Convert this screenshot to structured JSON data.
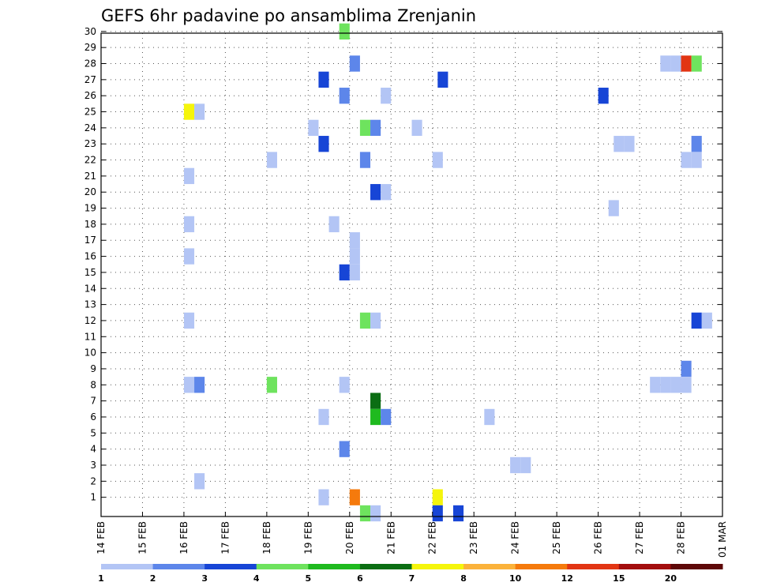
{
  "chart_data": {
    "type": "heatmap",
    "title": "GEFS 6hr padavine po ansamblima Zrenjanin",
    "xlabel": "",
    "ylabel": "",
    "x_ticks": [
      "14 FEB",
      "15 FEB",
      "16 FEB",
      "17 FEB",
      "18 FEB",
      "19 FEB",
      "20 FEB",
      "21 FEB",
      "22 FEB",
      "23 FEB",
      "24 FEB",
      "25 FEB",
      "26 FEB",
      "27 FEB",
      "28 FEB",
      "01 MAR"
    ],
    "y_ticks": [
      "1",
      "2",
      "3",
      "4",
      "5",
      "6",
      "7",
      "8",
      "9",
      "10",
      "11",
      "12",
      "13",
      "14",
      "15",
      "16",
      "17",
      "18",
      "19",
      "20",
      "21",
      "22",
      "23",
      "24",
      "25",
      "26",
      "27",
      "28",
      "29",
      "30"
    ],
    "xlim": [
      0,
      60
    ],
    "ylim": [
      0,
      30
    ],
    "x_units": "6-hour steps from 14 FEB 00Z",
    "y_units": "ensemble member",
    "grid": true,
    "colorbar": {
      "labels": [
        "1",
        "2",
        "3",
        "4",
        "5",
        "6",
        "7",
        "8",
        "10",
        "12",
        "15",
        "20"
      ],
      "colors": [
        "#b3c5f5",
        "#5d86ea",
        "#1745d6",
        "#6ee35e",
        "#1fba1f",
        "#0b6e13",
        "#f5f50c",
        "#fbb23a",
        "#f57a0c",
        "#e23513",
        "#a30e0e",
        "#5e0808"
      ]
    },
    "cells": [
      {
        "x": 23.5,
        "y": 30,
        "c": 3
      },
      {
        "x": 24.5,
        "y": 28,
        "c": 1
      },
      {
        "x": 33,
        "y": 27,
        "c": 2
      },
      {
        "x": 21.5,
        "y": 27,
        "c": 2
      },
      {
        "x": 54.5,
        "y": 28,
        "c": 0
      },
      {
        "x": 55.5,
        "y": 28,
        "c": 0
      },
      {
        "x": 56.5,
        "y": 28,
        "c": 9
      },
      {
        "x": 57.5,
        "y": 28,
        "c": 3
      },
      {
        "x": 23.5,
        "y": 26,
        "c": 1
      },
      {
        "x": 27.5,
        "y": 26,
        "c": 0
      },
      {
        "x": 48.5,
        "y": 26,
        "c": 2
      },
      {
        "x": 8.5,
        "y": 25,
        "c": 6
      },
      {
        "x": 9.5,
        "y": 25,
        "c": 0
      },
      {
        "x": 20.5,
        "y": 24,
        "c": 0
      },
      {
        "x": 25.5,
        "y": 24,
        "c": 3
      },
      {
        "x": 26.5,
        "y": 24,
        "c": 1
      },
      {
        "x": 30.5,
        "y": 24,
        "c": 0
      },
      {
        "x": 21.5,
        "y": 23,
        "c": 2
      },
      {
        "x": 50,
        "y": 23,
        "c": 0
      },
      {
        "x": 51,
        "y": 23,
        "c": 0
      },
      {
        "x": 57.5,
        "y": 23,
        "c": 1
      },
      {
        "x": 16.5,
        "y": 22,
        "c": 0
      },
      {
        "x": 25.5,
        "y": 22,
        "c": 1
      },
      {
        "x": 32.5,
        "y": 22,
        "c": 0
      },
      {
        "x": 56.5,
        "y": 22,
        "c": 0
      },
      {
        "x": 57.5,
        "y": 22,
        "c": 0
      },
      {
        "x": 8.5,
        "y": 21,
        "c": 0
      },
      {
        "x": 26.5,
        "y": 20,
        "c": 2
      },
      {
        "x": 27.5,
        "y": 20,
        "c": 0
      },
      {
        "x": 49.5,
        "y": 19,
        "c": 0
      },
      {
        "x": 8.5,
        "y": 18,
        "c": 0
      },
      {
        "x": 22.5,
        "y": 18,
        "c": 0
      },
      {
        "x": 24.5,
        "y": 17,
        "c": 0
      },
      {
        "x": 24.5,
        "y": 16,
        "c": 0
      },
      {
        "x": 8.5,
        "y": 16,
        "c": 0
      },
      {
        "x": 23.5,
        "y": 15,
        "c": 2
      },
      {
        "x": 24.5,
        "y": 15,
        "c": 0
      },
      {
        "x": 8.5,
        "y": 12,
        "c": 0
      },
      {
        "x": 25.5,
        "y": 12,
        "c": 3
      },
      {
        "x": 26.5,
        "y": 12,
        "c": 0
      },
      {
        "x": 57.5,
        "y": 12,
        "c": 2
      },
      {
        "x": 58.5,
        "y": 12,
        "c": 0
      },
      {
        "x": 56.5,
        "y": 9,
        "c": 1
      },
      {
        "x": 8.5,
        "y": 8,
        "c": 0
      },
      {
        "x": 9.5,
        "y": 8,
        "c": 1
      },
      {
        "x": 16.5,
        "y": 8,
        "c": 3
      },
      {
        "x": 23.5,
        "y": 8,
        "c": 0
      },
      {
        "x": 53.5,
        "y": 8,
        "c": 0
      },
      {
        "x": 54.5,
        "y": 8,
        "c": 0
      },
      {
        "x": 55.5,
        "y": 8,
        "c": 0
      },
      {
        "x": 56.5,
        "y": 8,
        "c": 0
      },
      {
        "x": 26.5,
        "y": 7,
        "c": 5
      },
      {
        "x": 21.5,
        "y": 6,
        "c": 0
      },
      {
        "x": 26.5,
        "y": 6,
        "c": 4
      },
      {
        "x": 27.5,
        "y": 6,
        "c": 1
      },
      {
        "x": 37.5,
        "y": 6,
        "c": 0
      },
      {
        "x": 23.5,
        "y": 4,
        "c": 1
      },
      {
        "x": 40,
        "y": 3,
        "c": 0
      },
      {
        "x": 41,
        "y": 3,
        "c": 0
      },
      {
        "x": 9.5,
        "y": 2,
        "c": 0
      },
      {
        "x": 21.5,
        "y": 1,
        "c": 0
      },
      {
        "x": 24.5,
        "y": 1,
        "c": 8
      },
      {
        "x": 32.5,
        "y": 1,
        "c": 6
      },
      {
        "x": 25.5,
        "y": 0,
        "c": 3
      },
      {
        "x": 26.5,
        "y": 0,
        "c": 0
      },
      {
        "x": 32.5,
        "y": 0,
        "c": 2
      },
      {
        "x": 34.5,
        "y": 0,
        "c": 2
      }
    ]
  }
}
